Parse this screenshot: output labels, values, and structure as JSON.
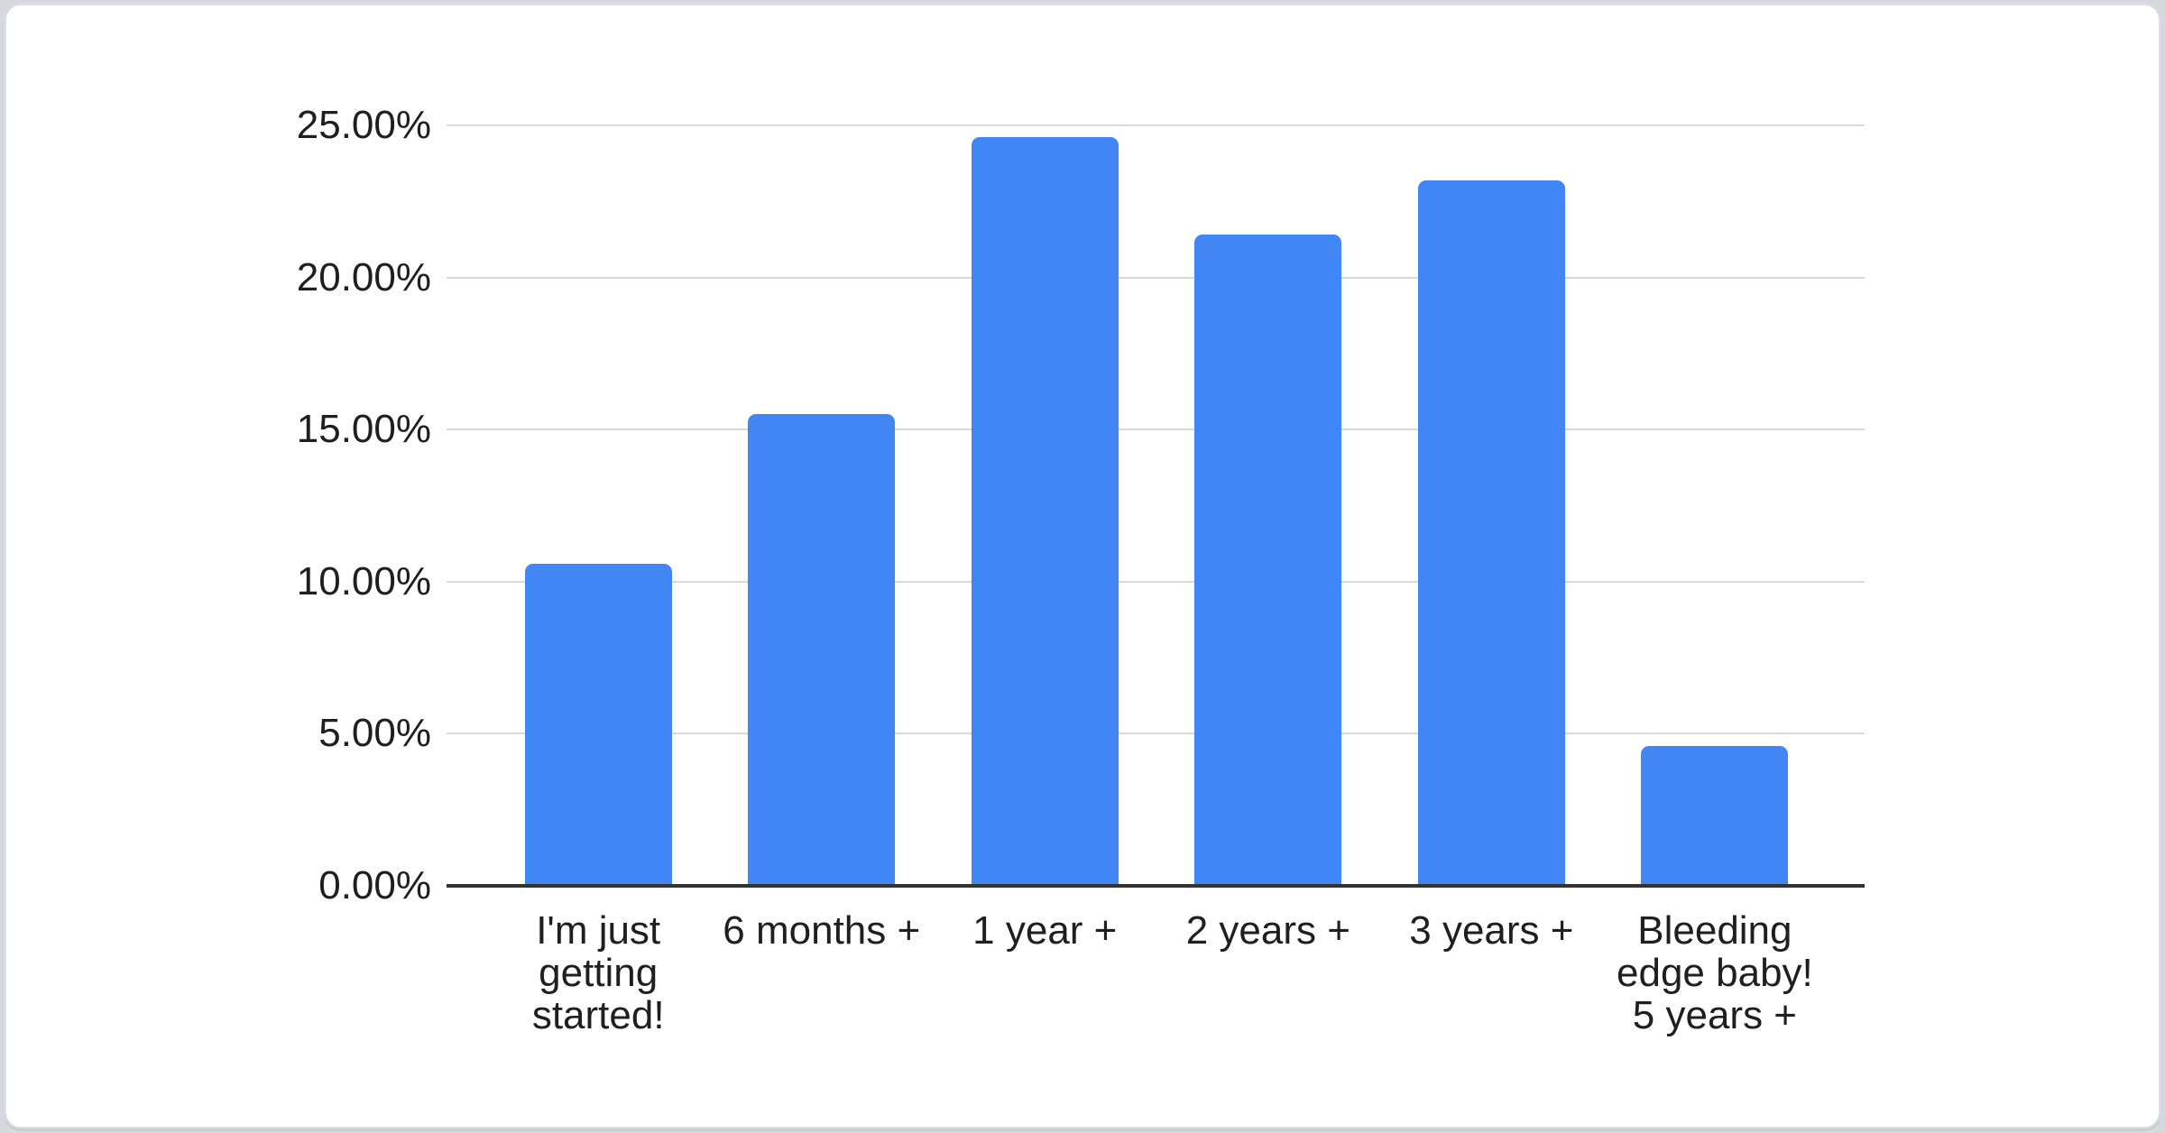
{
  "page": {
    "background_color": "#d5d8dc",
    "card_background_color": "#ffffff",
    "card_border_color": "#dcdfe2"
  },
  "chart_data": {
    "type": "bar",
    "title": "",
    "xlabel": "",
    "ylabel": "",
    "categories": [
      "I'm just getting started!",
      "6 months +",
      "1 year +",
      "2 years +",
      "3 years +",
      "Bleeding edge baby! 5 years +"
    ],
    "category_lines": [
      [
        "I'm just",
        "getting",
        "started!"
      ],
      [
        "6 months +"
      ],
      [
        "1 year +"
      ],
      [
        "2 years +"
      ],
      [
        "3 years +"
      ],
      [
        "Bleeding",
        "edge baby!",
        "5 years +"
      ]
    ],
    "values": [
      10.6,
      15.5,
      24.6,
      21.4,
      23.2,
      4.6
    ],
    "value_unit": "%",
    "ylim": [
      0,
      25
    ],
    "ytick_step": 5,
    "ytick_labels": [
      "0.00%",
      "5.00%",
      "10.00%",
      "15.00%",
      "20.00%",
      "25.00%"
    ],
    "grid": true,
    "legend": false,
    "bar_color": "#4285F4",
    "gridline_color": "#d9d9d9",
    "axis_line_color": "#333333",
    "label_color": "#1f1f1f"
  }
}
